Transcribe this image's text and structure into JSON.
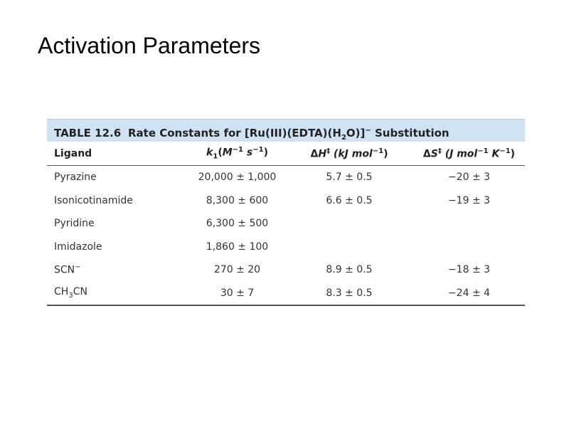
{
  "slide": {
    "title": "Activation Parameters"
  },
  "table": {
    "number": "TABLE 12.6",
    "caption_prefix": "Rate Constants for [Ru(III)(EDTA)(H",
    "caption_sub": "2",
    "caption_mid": "O)]",
    "caption_sup": "−",
    "caption_suffix": " Substitution",
    "headers": {
      "ligand": "Ligand",
      "k1_sym": "k",
      "k1_sub": "1",
      "k1_unit_open": "(",
      "k1_M": "M",
      "k1_M_sup": "−1",
      "k1_s": " s",
      "k1_s_sup": "−1",
      "k1_close": ")",
      "dH_delta": "Δ",
      "dH_sym": "H",
      "dH_sup": "‡",
      "dH_unit": " (kJ mol",
      "dH_unit_sup": "−1",
      "dH_close": ")",
      "dS_delta": "Δ",
      "dS_sym": "S",
      "dS_sup": "‡",
      "dS_unit": " (J mol",
      "dS_unit_sup": "−1",
      "dS_K": " K",
      "dS_K_sup": "−1",
      "dS_close": ")"
    },
    "rows": [
      {
        "ligand": "Pyrazine",
        "k1": "20,000 ± 1,000",
        "dH": "5.7 ± 0.5",
        "dS": "−20 ± 3"
      },
      {
        "ligand": "Isonicotinamide",
        "k1": "8,300 ± 600",
        "dH": "6.6 ± 0.5",
        "dS": "−19 ± 3"
      },
      {
        "ligand": "Pyridine",
        "k1": "6,300 ± 500",
        "dH": "",
        "dS": ""
      },
      {
        "ligand": "Imidazole",
        "k1": "1,860 ± 100",
        "dH": "",
        "dS": ""
      },
      {
        "ligand_main": "SCN",
        "ligand_sup": "−",
        "k1": "270 ± 20",
        "dH": "8.9 ± 0.5",
        "dS": "−18 ± 3"
      },
      {
        "ligand_main": "CH",
        "ligand_sub": "3",
        "ligand_tail": "CN",
        "k1": "30 ± 7",
        "dH": "8.3 ± 0.5",
        "dS": "−24 ± 4"
      }
    ]
  }
}
